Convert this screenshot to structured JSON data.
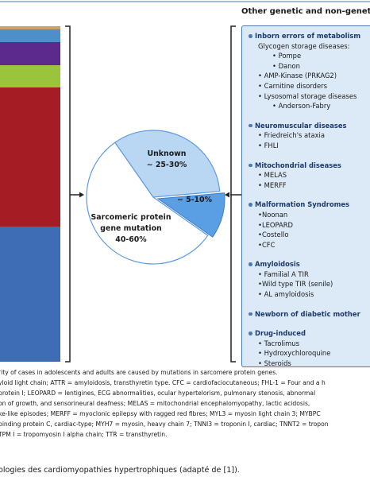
{
  "heading": "Other genetic and non-genetic",
  "pie_labels": {
    "unknown": [
      "Unknown",
      "~ 25-30%"
    ],
    "minor": "~ 5-10%",
    "sarcomeric": [
      "Sarcomeric protein",
      "gene mutation",
      "40-60%"
    ]
  },
  "sections": [
    {
      "title": "Inborn errors of metabolism",
      "items": [
        {
          "text": "Glycogen storage diseases:",
          "subitems": [
            "• Pompe",
            "• Danon"
          ]
        },
        {
          "text": "• AMP-Kinase (PRKAG2)"
        },
        {
          "text": "• Carnitine disorders"
        },
        {
          "text": "• Lysosomal storage diseases",
          "subitems": [
            "• Anderson-Fabry"
          ]
        }
      ]
    },
    {
      "title": "Neuromuscular diseases",
      "items": [
        {
          "text": "• Friedreich's ataxia"
        },
        {
          "text": "• FHLI"
        }
      ]
    },
    {
      "title": "Mitochondrial diseases",
      "items": [
        {
          "text": "• MELAS"
        },
        {
          "text": "• MERFF"
        }
      ]
    },
    {
      "title": "Malformation Syndromes",
      "items": [
        {
          "text": "•Noonan"
        },
        {
          "text": "•LEOPARD"
        },
        {
          "text": "•Costello"
        },
        {
          "text": "•CFC"
        }
      ]
    },
    {
      "title": "Amyloidosis",
      "items": [
        {
          "text": "• Familial A TIR"
        },
        {
          "text": "•Wild type TIR (senile)"
        },
        {
          "text": "• AL amyloidosis"
        }
      ]
    },
    {
      "title": "Newborn of diabetic mother",
      "items": []
    },
    {
      "title": "Drug-induced",
      "items": [
        {
          "text": "• Tacrolimus"
        },
        {
          "text": "• Hydroxychloroquine"
        },
        {
          "text": "• Steroids"
        }
      ]
    }
  ],
  "notes": [
    "rity of cases in adolescents and adults are caused by mutations in sarcomere protein genes.",
    "yloid light chain; ATTR = amyloidosis, transthyretin type. CFC = cardiofaciocutaneous; FHL-1 = Four and a h",
    "protein I; LEOPARD = lentigines, ECG abnormalities, ocular hypertelorism, pulmonary stenosis, abnormal",
    "on of growth, and sensorineural deafness; MELAS = mitochondrial encephalomyopathy, lactic acidosis,",
    "ke-like episodes; MERFF = myoclonic epilepsy with ragged red fibres; MYL3 = myosin light chain 3; MYBPC",
    "binding protein C, cardiac-type; MYH7 = myosin, heavy chain 7; TNNI3 = troponin I, cardiac; TNNT2 = tropon",
    "TPM I = tropomyosin I alpha chain; TTR = transthyretin."
  ],
  "caption": "ologies des cardiomyopathies hypertrophiques (adapté de [1])."
}
